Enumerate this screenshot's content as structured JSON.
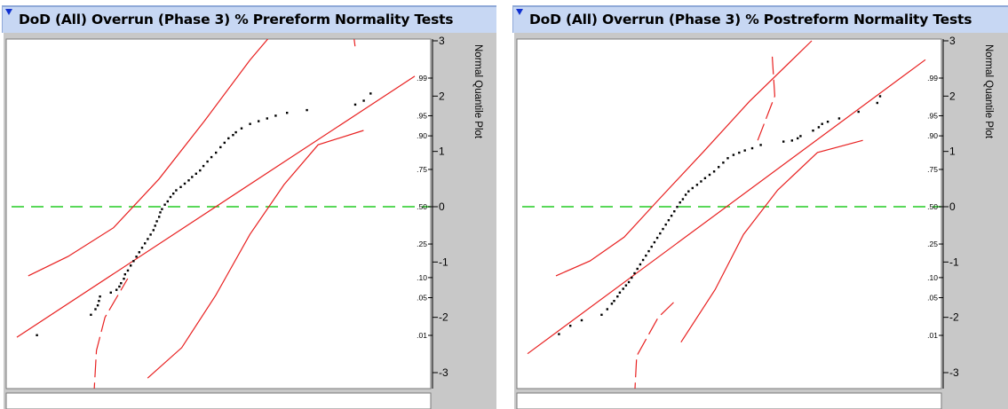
{
  "panels": [
    {
      "title": "DoD (All) Overrun (Phase 3) % Prereform Normality Tests",
      "side_label": "Normal Quantile Plot",
      "chart_data": {
        "type": "scatter",
        "subtype": "normal-quantile-plot",
        "left_axis_ticks": [
          ".01",
          ".05",
          ".10",
          ".25",
          ".50",
          ".75",
          ".90",
          ".95",
          ".99"
        ],
        "left_axis_values": [
          0.01,
          0.05,
          0.1,
          0.25,
          0.5,
          0.75,
          0.9,
          0.95,
          0.99
        ],
        "right_axis_ticks": [
          "-3",
          "-2",
          "-1",
          "0",
          "1",
          "2",
          "3"
        ],
        "right_axis_values": [
          -3,
          -2,
          -1,
          0,
          1,
          2,
          3
        ],
        "ylim": [
          -3,
          3
        ],
        "reference_line_z": 0,
        "fit_line_z": [
          -4.48,
          4.42
        ],
        "confidence_band_upper": [
          [
            -3.3,
            -1.25
          ],
          [
            -2.6,
            -0.9
          ],
          [
            -1.8,
            -0.38
          ],
          [
            -1.0,
            0.5
          ],
          [
            -0.2,
            1.55
          ],
          [
            0.6,
            2.65
          ],
          [
            1.3,
            3.5
          ]
        ],
        "confidence_band_lower": [
          [
            -1.2,
            -3.1
          ],
          [
            -0.6,
            -2.55
          ],
          [
            0.0,
            -1.6
          ],
          [
            0.6,
            -0.5
          ],
          [
            1.2,
            0.4
          ],
          [
            1.8,
            1.12
          ],
          [
            2.6,
            1.38
          ]
        ],
        "lilliefors_left": [
          [
            -2.15,
            -3.5
          ],
          [
            -2.1,
            -2.6
          ],
          [
            -1.95,
            -2.0
          ],
          [
            -1.55,
            -1.3
          ]
        ],
        "lilliefors_right": [
          [
            2.45,
            2.9
          ],
          [
            2.4,
            3.3
          ],
          [
            2.35,
            3.6
          ]
        ],
        "points": [
          [
            -3.15,
            -2.32
          ],
          [
            -2.2,
            -1.95
          ],
          [
            -2.12,
            -1.85
          ],
          [
            -2.08,
            -1.78
          ],
          [
            -2.06,
            -1.7
          ],
          [
            -2.04,
            -1.62
          ],
          [
            -1.85,
            -1.55
          ],
          [
            -1.75,
            -1.5
          ],
          [
            -1.7,
            -1.44
          ],
          [
            -1.67,
            -1.38
          ],
          [
            -1.62,
            -1.3
          ],
          [
            -1.6,
            -1.22
          ],
          [
            -1.55,
            -1.15
          ],
          [
            -1.5,
            -1.06
          ],
          [
            -1.45,
            -0.98
          ],
          [
            -1.4,
            -0.9
          ],
          [
            -1.35,
            -0.82
          ],
          [
            -1.3,
            -0.74
          ],
          [
            -1.25,
            -0.66
          ],
          [
            -1.2,
            -0.58
          ],
          [
            -1.15,
            -0.5
          ],
          [
            -1.1,
            -0.42
          ],
          [
            -1.07,
            -0.34
          ],
          [
            -1.04,
            -0.26
          ],
          [
            -1.0,
            -0.18
          ],
          [
            -0.98,
            -0.1
          ],
          [
            -0.95,
            -0.04
          ],
          [
            -0.9,
            0.04
          ],
          [
            -0.85,
            0.1
          ],
          [
            -0.8,
            0.18
          ],
          [
            -0.75,
            0.24
          ],
          [
            -0.7,
            0.3
          ],
          [
            -0.62,
            0.36
          ],
          [
            -0.55,
            0.42
          ],
          [
            -0.48,
            0.48
          ],
          [
            -0.42,
            0.54
          ],
          [
            -0.35,
            0.6
          ],
          [
            -0.28,
            0.66
          ],
          [
            -0.22,
            0.74
          ],
          [
            -0.15,
            0.82
          ],
          [
            -0.08,
            0.9
          ],
          [
            0.0,
            0.98
          ],
          [
            0.08,
            1.08
          ],
          [
            0.15,
            1.16
          ],
          [
            0.22,
            1.24
          ],
          [
            0.3,
            1.3
          ],
          [
            0.35,
            1.35
          ],
          [
            0.45,
            1.42
          ],
          [
            0.6,
            1.5
          ],
          [
            0.75,
            1.55
          ],
          [
            0.9,
            1.6
          ],
          [
            1.05,
            1.65
          ],
          [
            1.25,
            1.7
          ],
          [
            1.6,
            1.75
          ],
          [
            2.45,
            1.85
          ],
          [
            2.6,
            1.92
          ],
          [
            2.72,
            2.05
          ]
        ]
      }
    },
    {
      "title": "DoD (All) Overrun (Phase 3) % Postreform Normality Tests",
      "side_label": "Normal Quantile Plot",
      "chart_data": {
        "type": "scatter",
        "subtype": "normal-quantile-plot",
        "left_axis_ticks": [
          ".01",
          ".05",
          ".10",
          ".25",
          ".50",
          ".75",
          ".90",
          ".95",
          ".99"
        ],
        "left_axis_values": [
          0.01,
          0.05,
          0.1,
          0.25,
          0.5,
          0.75,
          0.9,
          0.95,
          0.99
        ],
        "right_axis_ticks": [
          "-3",
          "-2",
          "-1",
          "0",
          "1",
          "2",
          "3"
        ],
        "right_axis_values": [
          -3,
          -2,
          -1,
          0,
          1,
          2,
          3
        ],
        "ylim": [
          -3,
          3
        ],
        "reference_line_z": 0,
        "fit_line_z": [
          -4.0,
          3.9
        ],
        "confidence_band_upper": [
          [
            -3.0,
            -1.25
          ],
          [
            -2.4,
            -0.98
          ],
          [
            -1.8,
            -0.55
          ],
          [
            -1.2,
            0.12
          ],
          [
            -0.4,
            1.0
          ],
          [
            0.4,
            1.9
          ],
          [
            1.5,
            3.0
          ]
        ],
        "confidence_band_lower": [
          [
            -0.8,
            -2.45
          ],
          [
            -0.2,
            -1.5
          ],
          [
            0.3,
            -0.5
          ],
          [
            0.9,
            0.3
          ],
          [
            1.6,
            0.98
          ],
          [
            2.4,
            1.2
          ]
        ],
        "lilliefors_left": [
          [
            -1.62,
            -3.5
          ],
          [
            -1.58,
            -2.7
          ],
          [
            -1.2,
            -2.0
          ],
          [
            -0.9,
            -1.7
          ]
        ],
        "lilliefors_right": [
          [
            0.55,
            1.2
          ],
          [
            0.85,
            2.0
          ],
          [
            0.8,
            2.8
          ]
        ],
        "points": [
          [
            -2.95,
            -2.3
          ],
          [
            -2.75,
            -2.15
          ],
          [
            -2.55,
            -2.05
          ],
          [
            -2.2,
            -1.95
          ],
          [
            -2.1,
            -1.85
          ],
          [
            -2.02,
            -1.75
          ],
          [
            -1.98,
            -1.7
          ],
          [
            -1.92,
            -1.62
          ],
          [
            -1.88,
            -1.55
          ],
          [
            -1.82,
            -1.48
          ],
          [
            -1.77,
            -1.42
          ],
          [
            -1.72,
            -1.36
          ],
          [
            -1.67,
            -1.28
          ],
          [
            -1.62,
            -1.2
          ],
          [
            -1.57,
            -1.12
          ],
          [
            -1.52,
            -1.04
          ],
          [
            -1.47,
            -0.96
          ],
          [
            -1.42,
            -0.88
          ],
          [
            -1.37,
            -0.8
          ],
          [
            -1.32,
            -0.72
          ],
          [
            -1.27,
            -0.64
          ],
          [
            -1.22,
            -0.56
          ],
          [
            -1.17,
            -0.48
          ],
          [
            -1.12,
            -0.4
          ],
          [
            -1.07,
            -0.32
          ],
          [
            -1.02,
            -0.24
          ],
          [
            -0.97,
            -0.16
          ],
          [
            -0.92,
            -0.08
          ],
          [
            -0.87,
            0.0
          ],
          [
            -0.82,
            0.08
          ],
          [
            -0.77,
            0.14
          ],
          [
            -0.72,
            0.22
          ],
          [
            -0.67,
            0.28
          ],
          [
            -0.6,
            0.34
          ],
          [
            -0.52,
            0.4
          ],
          [
            -0.45,
            0.46
          ],
          [
            -0.38,
            0.52
          ],
          [
            -0.3,
            0.58
          ],
          [
            -0.22,
            0.64
          ],
          [
            -0.14,
            0.72
          ],
          [
            -0.06,
            0.8
          ],
          [
            0.02,
            0.88
          ],
          [
            0.12,
            0.94
          ],
          [
            0.22,
            0.98
          ],
          [
            0.32,
            1.02
          ],
          [
            0.45,
            1.06
          ],
          [
            0.6,
            1.12
          ],
          [
            1.0,
            1.18
          ],
          [
            1.15,
            1.2
          ],
          [
            1.25,
            1.24
          ],
          [
            1.3,
            1.28
          ],
          [
            1.52,
            1.38
          ],
          [
            1.62,
            1.44
          ],
          [
            1.68,
            1.5
          ],
          [
            1.78,
            1.54
          ],
          [
            1.98,
            1.6
          ],
          [
            2.32,
            1.72
          ],
          [
            2.65,
            1.88
          ],
          [
            2.7,
            2.0
          ]
        ]
      }
    }
  ]
}
